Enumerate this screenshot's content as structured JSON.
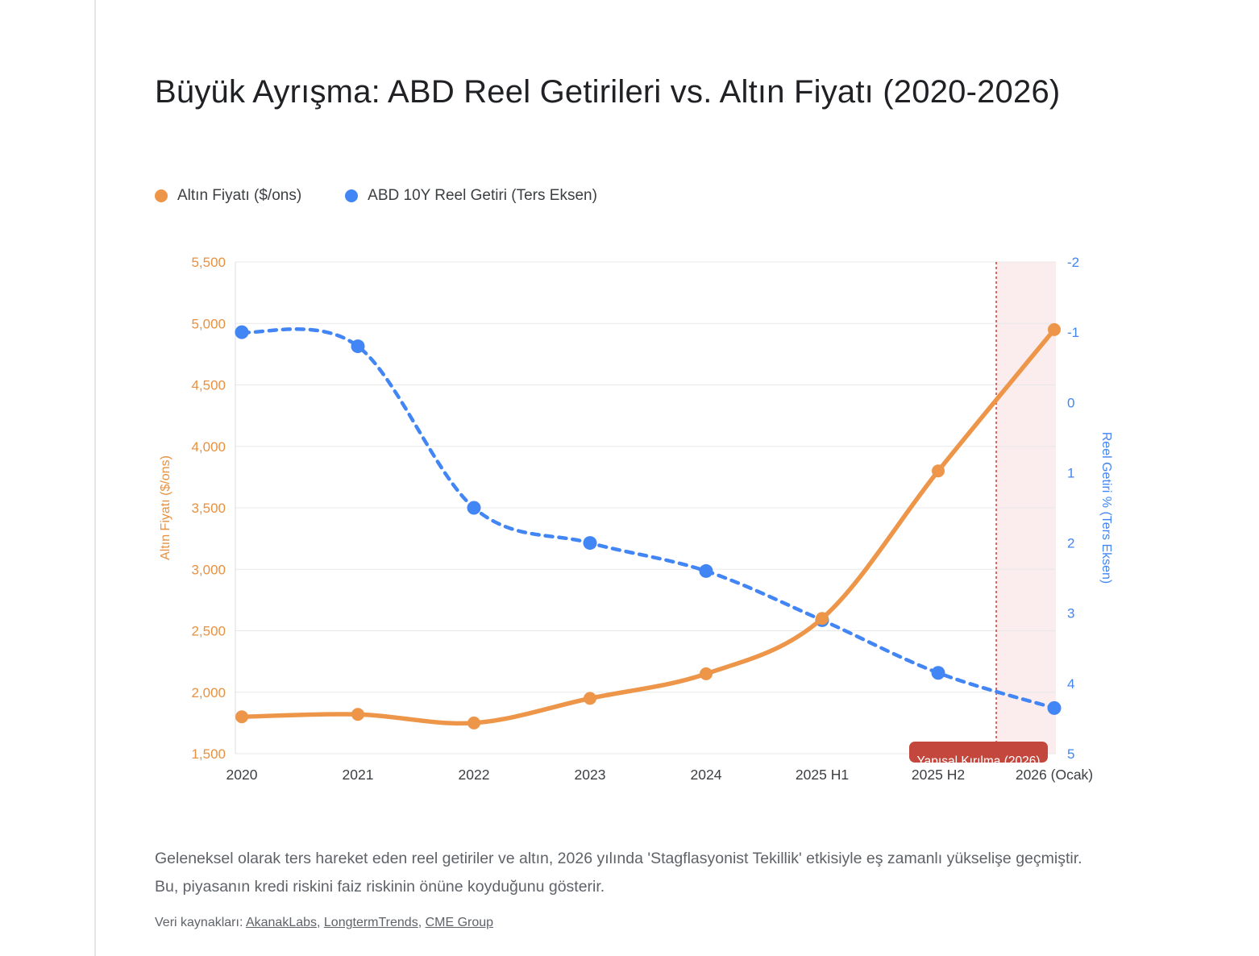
{
  "page": {
    "title": "Büyük Ayrışma: ABD Reel Getirileri vs. Altın Fiyatı (2020-2026)"
  },
  "chart_data": {
    "type": "line",
    "categories": [
      "2020",
      "2021",
      "2022",
      "2023",
      "2024",
      "2025 H1",
      "2025 H2",
      "2026 (Ocak)"
    ],
    "series": [
      {
        "name": "Altın Fiyatı ($/ons)",
        "axis": "left",
        "color": "#ED9649",
        "style": "solid",
        "values": [
          1800,
          1820,
          1750,
          1950,
          2150,
          2600,
          3800,
          4950
        ]
      },
      {
        "name": "ABD 10Y Reel Getiri (Ters Eksen)",
        "axis": "right",
        "color": "#4285F4",
        "style": "dashed",
        "values": [
          -1.0,
          -0.8,
          1.5,
          2.0,
          2.4,
          3.1,
          3.85,
          4.35
        ]
      }
    ],
    "left_axis": {
      "label": "Altın Fiyatı ($/ons)",
      "min": 1500,
      "max": 5500,
      "tick_step": 500,
      "color": "#E8913E",
      "tick_labels": [
        "1,500",
        "2,000",
        "2,500",
        "3,000",
        "3,500",
        "4,000",
        "4,500",
        "5,000",
        "5,500"
      ]
    },
    "right_axis": {
      "label": "Reel Getiri % (Ters Eksen)",
      "min": -2,
      "max": 5,
      "tick_step": 1,
      "inverted": true,
      "color": "#4285F4",
      "tick_labels": [
        "-2",
        "-1",
        "0",
        "1",
        "2",
        "3",
        "4",
        "5"
      ]
    },
    "annotation": {
      "label": "Yapısal Kırılma (2026)",
      "band_start_index": 6.5,
      "band_color": "#FBECED",
      "line_color": "#CE4B41",
      "box_color": "#C4473E",
      "text_color": "#FFFFFF"
    },
    "grid": true,
    "legend_position": "top"
  },
  "footer": {
    "caption": "Geleneksel olarak ters hareket eden reel getiriler ve altın, 2026 yılında 'Stagflasyonist Tekillik' etkisiyle eş zamanlı yükselişe geçmiştir. Bu, piyasanın kredi riskini faiz riskinin önüne koyduğunu gösterir.",
    "sources_prefix": "Veri kaynakları: ",
    "sep": ", ",
    "links": [
      {
        "label": "AkanakLabs"
      },
      {
        "label": "LongtermTrends"
      },
      {
        "label": "CME Group"
      }
    ]
  }
}
